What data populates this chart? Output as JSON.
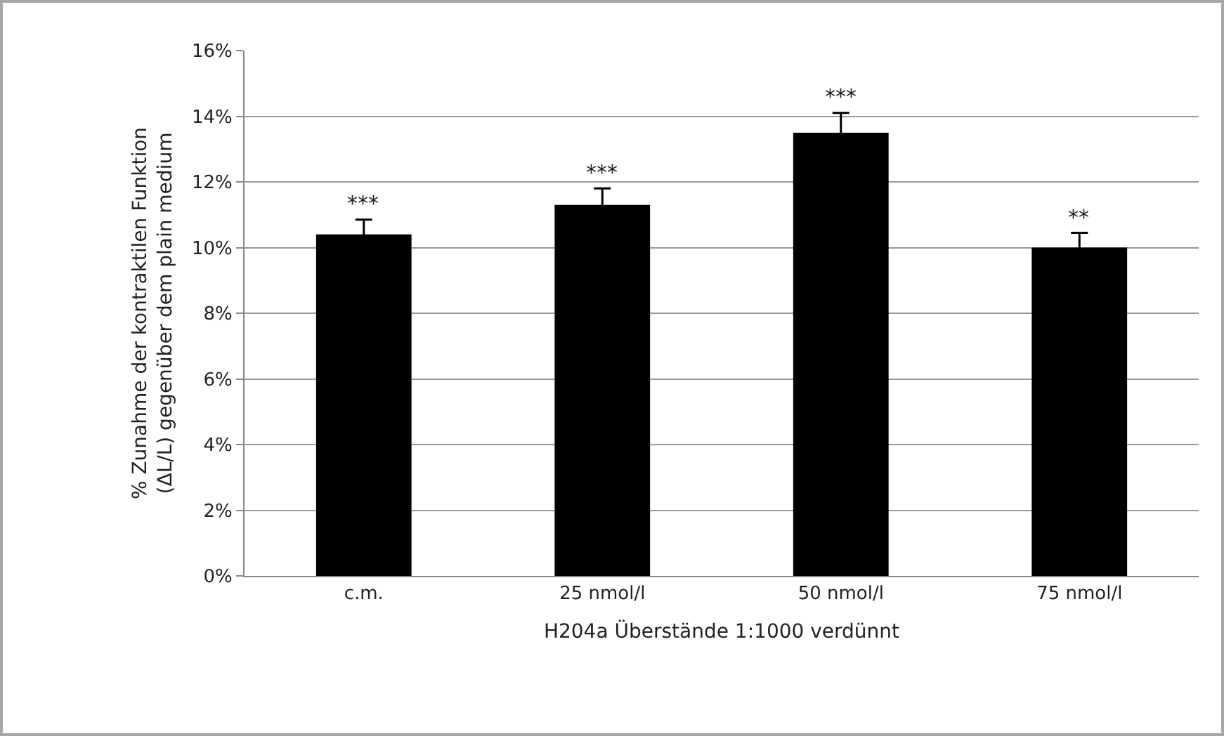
{
  "chart_data": {
    "type": "bar",
    "xlabel": "H204a Überstände 1:1000 verdünnt",
    "ylabel": "% Zunahme der kontraktilen Funktion (ΔL/L) gegenüber dem plain medium",
    "categories": [
      "c.m.",
      "25 nmol/l",
      "50 nmol/l",
      "75 nmol/l"
    ],
    "values": [
      10.4,
      11.3,
      13.5,
      10.0
    ],
    "color": "#000000",
    "errors": [
      0.45,
      0.5,
      0.6,
      0.45
    ],
    "ylim": [
      0,
      16
    ],
    "yticks": [
      {
        "value": 0,
        "label": "0%"
      },
      {
        "value": 2,
        "label": "2%"
      },
      {
        "value": 4,
        "label": "4%"
      },
      {
        "value": 6,
        "label": "6%"
      },
      {
        "value": 8,
        "label": "8%"
      },
      {
        "value": 10,
        "label": "10%"
      },
      {
        "value": 12,
        "label": "12%"
      },
      {
        "value": 14,
        "label": "14%"
      },
      {
        "value": 16,
        "label": "16%"
      }
    ],
    "grid": "y",
    "annotations": [
      {
        "text": "***",
        "x": "c.m.",
        "y": 10.85
      },
      {
        "text": "***",
        "x": "25 nmol/l",
        "y": 11.8
      },
      {
        "text": "***",
        "x": "50 nmol/l",
        "y": 14.1
      },
      {
        "text": "**",
        "x": "75 nmol/l",
        "y": 10.45
      }
    ]
  }
}
